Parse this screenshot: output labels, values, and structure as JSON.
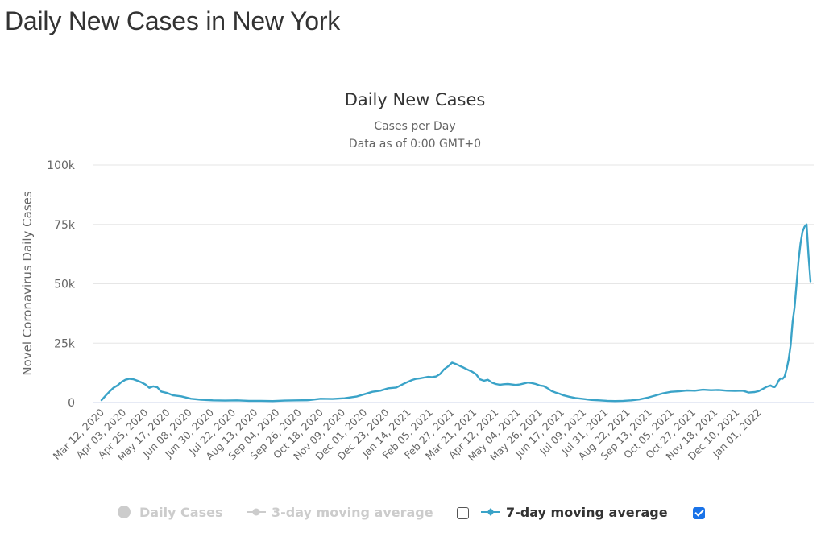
{
  "page": {
    "title": "Daily New Cases in New York"
  },
  "chart_data": {
    "type": "line",
    "title": "Daily New Cases",
    "subtitle_lines": [
      "Cases per Day",
      "Data as of 0:00 GMT+0"
    ],
    "xlabel": "",
    "ylabel": "Novel Coronavirus Daily Cases",
    "ylim": [
      0,
      100000
    ],
    "yticks": [
      0,
      25000,
      50000,
      75000,
      100000
    ],
    "ytick_labels": [
      "0",
      "25k",
      "50k",
      "75k",
      "100k"
    ],
    "grid": true,
    "x_start": "Mar 12, 2020",
    "x_end": "Jan 18, 2022",
    "xtick_labels": [
      "Mar 12, 2020",
      "Apr 03, 2020",
      "Apr 25, 2020",
      "May 17, 2020",
      "Jun 08, 2020",
      "Jun 30, 2020",
      "Jul 22, 2020",
      "Aug 13, 2020",
      "Sep 04, 2020",
      "Sep 26, 2020",
      "Oct 18, 2020",
      "Nov 09, 2020",
      "Dec 01, 2020",
      "Dec 23, 2020",
      "Jan 14, 2021",
      "Feb 05, 2021",
      "Feb 27, 2021",
      "Mar 21, 2021",
      "Apr 12, 2021",
      "May 04, 2021",
      "May 26, 2021",
      "Jun 17, 2021",
      "Jul 09, 2021",
      "Jul 31, 2021",
      "Aug 22, 2021",
      "Sep 13, 2021",
      "Oct 05, 2021",
      "Oct 27, 2021",
      "Nov 18, 2021",
      "Dec 10, 2021",
      "Jan 01, 2022"
    ],
    "series": [
      {
        "name": "7-day moving average",
        "color": "#3aa3c8",
        "visible": true,
        "x_days": [
          0,
          4,
          8,
          12,
          16,
          20,
          24,
          28,
          32,
          36,
          40,
          44,
          48,
          52,
          56,
          60,
          66,
          72,
          80,
          90,
          100,
          112,
          124,
          136,
          148,
          160,
          172,
          184,
          196,
          208,
          220,
          232,
          244,
          256,
          264,
          272,
          280,
          288,
          296,
          304,
          312,
          316,
          320,
          324,
          328,
          332,
          336,
          340,
          344,
          348,
          352,
          356,
          360,
          364,
          368,
          372,
          376,
          380,
          384,
          388,
          392,
          396,
          400,
          404,
          408,
          412,
          416,
          420,
          424,
          428,
          432,
          436,
          440,
          444,
          448,
          452,
          456,
          460,
          464,
          470,
          476,
          484,
          492,
          500,
          508,
          516,
          524,
          532,
          540,
          548,
          556,
          564,
          572,
          580,
          588,
          596,
          604,
          612,
          620,
          628,
          636,
          644,
          650,
          656,
          660,
          664,
          668,
          672,
          674,
          676,
          678,
          680,
          682,
          684,
          686,
          688,
          690,
          692,
          694,
          696,
          698,
          700,
          702,
          704,
          706,
          708,
          710,
          712
        ],
        "values": [
          1000,
          2800,
          4600,
          6200,
          7200,
          8600,
          9600,
          10000,
          9800,
          9200,
          8500,
          7600,
          6200,
          6800,
          6400,
          4600,
          4000,
          3000,
          2600,
          1600,
          1200,
          900,
          800,
          900,
          700,
          700,
          600,
          800,
          900,
          1000,
          1600,
          1500,
          1800,
          2500,
          3500,
          4500,
          5000,
          6000,
          6300,
          8000,
          9500,
          10000,
          10200,
          10500,
          10800,
          10700,
          11000,
          12000,
          14000,
          15200,
          16800,
          16200,
          15400,
          14600,
          13800,
          13000,
          12000,
          9800,
          9200,
          9600,
          8400,
          7800,
          7500,
          7700,
          7800,
          7600,
          7400,
          7600,
          8000,
          8400,
          8200,
          7800,
          7200,
          6900,
          6000,
          4800,
          4200,
          3700,
          3000,
          2400,
          1900,
          1500,
          1100,
          900,
          700,
          600,
          700,
          900,
          1300,
          2000,
          2900,
          3900,
          4500,
          4700,
          5100,
          5000,
          5400,
          5200,
          5300,
          5000,
          4900,
          5000,
          4200,
          4400,
          4800,
          5700,
          6600,
          7200,
          6600,
          6500,
          7500,
          9200,
          10200,
          10000,
          11000,
          14000,
          18000,
          24000,
          34000,
          40000,
          50000,
          60000,
          67000,
          72000,
          74000,
          75000,
          62000,
          51000
        ]
      }
    ]
  },
  "legend": {
    "items": [
      {
        "label": "Daily Cases",
        "icon": "circle-marker-icon",
        "visible": false,
        "checked": null
      },
      {
        "label": "3-day moving average",
        "icon": "line-marker-icon",
        "visible": false,
        "checked": false
      },
      {
        "label": "7-day moving average",
        "icon": "line-marker-icon",
        "visible": true,
        "checked": true
      }
    ]
  }
}
